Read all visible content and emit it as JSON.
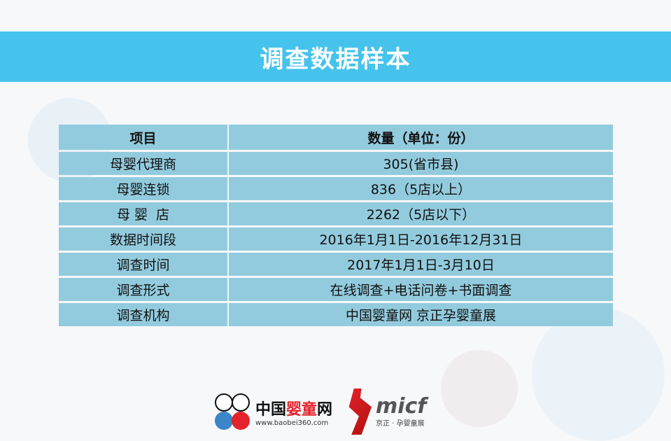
{
  "title": "调查数据样本",
  "table": {
    "headers": [
      "项目",
      "数量（单位：份）"
    ],
    "rows": [
      [
        "母婴代理商",
        "305(省市县)"
      ],
      [
        "母婴连锁",
        "836（5店以上）"
      ],
      [
        "母 婴  店",
        "2262（5店以下）"
      ],
      [
        "数据时间段",
        "2016年1月1日-2016年12月31日"
      ],
      [
        "调查时间",
        "2017年1月1日-3月10日"
      ],
      [
        "调查形式",
        "在线调查+电话问卷+书面调查"
      ],
      [
        "调查机构",
        "中国婴童网 京正孕婴童展"
      ]
    ]
  },
  "logos": {
    "baobei": {
      "name_black": "中国",
      "name_red": "婴童",
      "name_end": "网",
      "url": "www.baobei360.com"
    },
    "micf": {
      "name": "micf",
      "sub": "京正 · 孕婴童展"
    }
  },
  "colors": {
    "title_bar": "#45c3ec",
    "table_cell": "#93cbde",
    "accent_red": "#e4222b"
  }
}
